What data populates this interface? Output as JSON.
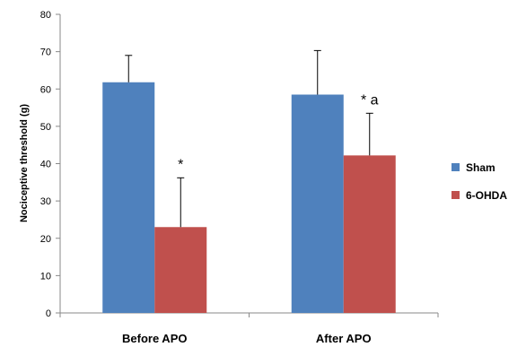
{
  "chart_data": {
    "type": "bar",
    "title": "",
    "ylabel": "Nociceptive threshold (g)",
    "xlabel": "",
    "ylim": [
      0,
      80
    ],
    "yticks": [
      0,
      10,
      20,
      30,
      40,
      50,
      60,
      70,
      80
    ],
    "categories": [
      "Before APO",
      "After APO"
    ],
    "series": [
      {
        "name": "Sham",
        "color": "#4f81bd",
        "values": [
          61.8,
          58.5
        ],
        "errors": [
          7.2,
          11.8
        ]
      },
      {
        "name": "6-OHDA",
        "color": "#c0504d",
        "values": [
          23.0,
          42.2
        ],
        "errors": [
          13.2,
          11.3
        ]
      }
    ],
    "annotations": [
      {
        "category": 0,
        "series": 1,
        "text": "*"
      },
      {
        "category": 1,
        "series": 1,
        "text": "* a"
      }
    ],
    "legend_position": "right",
    "grid": false
  }
}
